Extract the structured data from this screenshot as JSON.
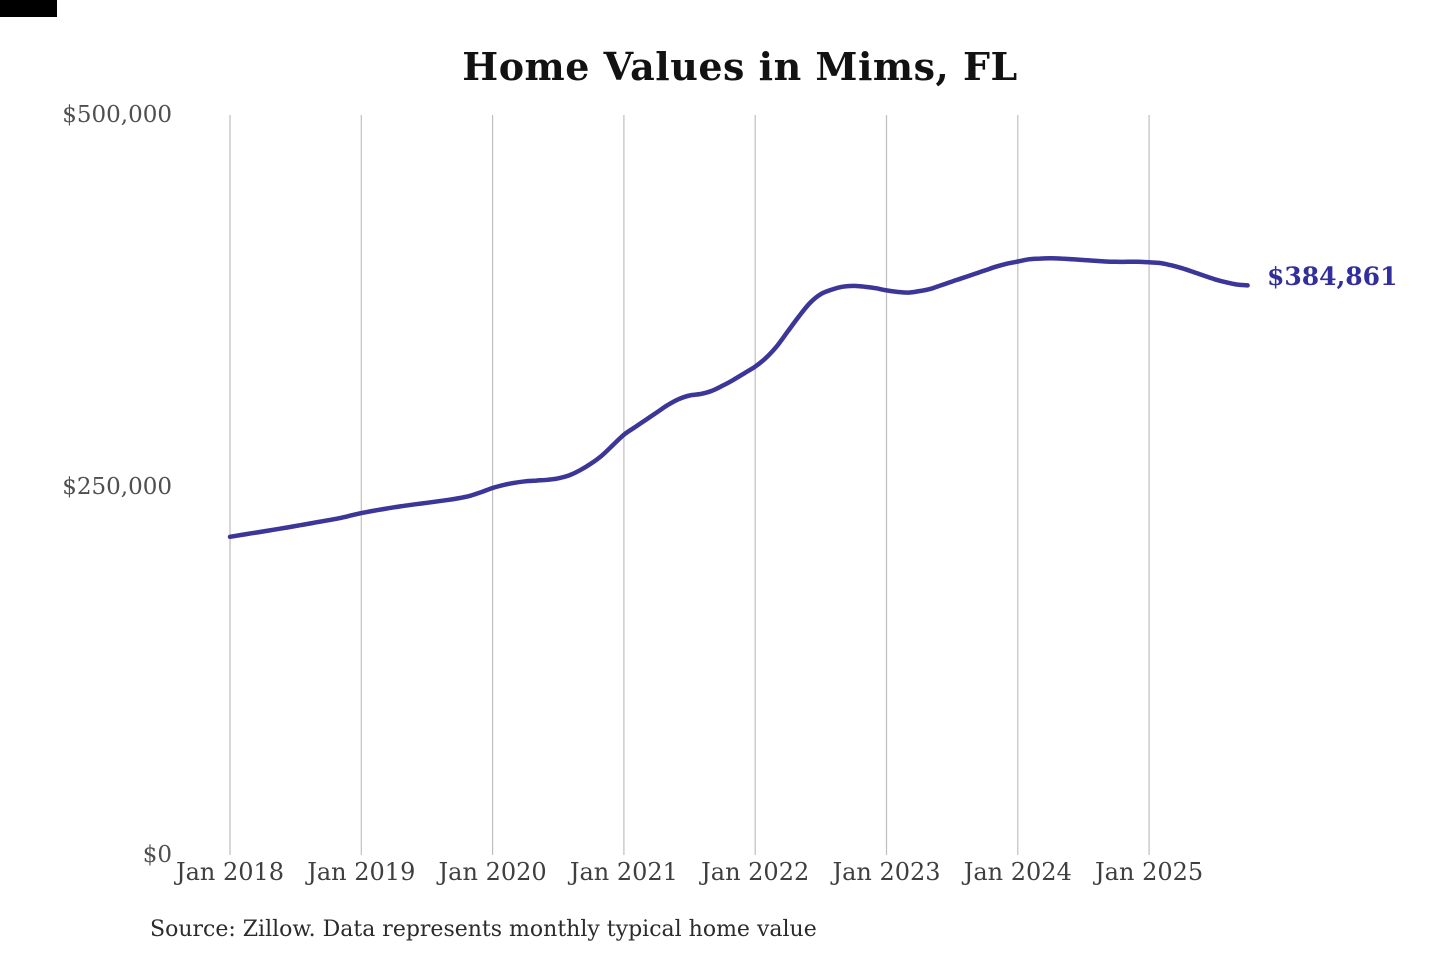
{
  "decoration": {
    "top_left_bar_color": "#000000"
  },
  "chart": {
    "title": "Home Values in Mims, FL",
    "y_ticks": [
      "$500,000",
      "$250,000",
      "$0"
    ],
    "x_ticks": [
      "Jan 2018",
      "Jan 2019",
      "Jan 2020",
      "Jan 2021",
      "Jan 2022",
      "Jan 2023",
      "Jan 2024",
      "Jan 2025"
    ],
    "end_label": "$384,861",
    "source_note": "Source: Zillow. Data represents monthly typical home value",
    "colors": {
      "line": "#3b3697",
      "end_label": "#322e9b",
      "gridline": "#bfbfbf",
      "tick_text": "#4f4f4f",
      "title_text": "#121212",
      "background": "#ffffff"
    }
  },
  "chart_data": {
    "type": "line",
    "title": "Home Values in Mims, FL",
    "xlabel": "",
    "ylabel": "",
    "ylim": [
      0,
      500000
    ],
    "y_tick_values": [
      500000,
      250000,
      0
    ],
    "x_tick_labels": [
      "Jan 2018",
      "Jan 2019",
      "Jan 2020",
      "Jan 2021",
      "Jan 2022",
      "Jan 2023",
      "Jan 2024",
      "Jan 2025"
    ],
    "frequency": "monthly",
    "x_start": "2018-01",
    "x_end": "2025-10",
    "grid": "vertical-only",
    "legend": "none",
    "final_value": 384861,
    "final_value_label": "$384,861",
    "series": [
      {
        "name": "Typical home value",
        "values": [
          215000,
          216200,
          217400,
          218600,
          219800,
          221000,
          222300,
          223600,
          224900,
          226200,
          227600,
          229300,
          231000,
          232400,
          233700,
          234900,
          236000,
          237000,
          238000,
          239000,
          240000,
          241200,
          242800,
          245300,
          248000,
          250000,
          251500,
          252500,
          253000,
          253500,
          254500,
          256500,
          260000,
          264500,
          270000,
          277000,
          284000,
          289000,
          294000,
          299000,
          304000,
          308000,
          310500,
          311500,
          313500,
          317000,
          321000,
          325500,
          330000,
          336000,
          344000,
          354000,
          364000,
          373000,
          379000,
          382000,
          384000,
          384500,
          384000,
          383000,
          381500,
          380500,
          380000,
          381000,
          382500,
          385000,
          387500,
          390000,
          392500,
          395000,
          397500,
          399500,
          401000,
          402500,
          403000,
          403200,
          403000,
          402500,
          402000,
          401500,
          401000,
          400800,
          400800,
          400800,
          400500,
          400000,
          398500,
          396500,
          394000,
          391500,
          389000,
          387000,
          385500,
          384861
        ]
      }
    ]
  }
}
